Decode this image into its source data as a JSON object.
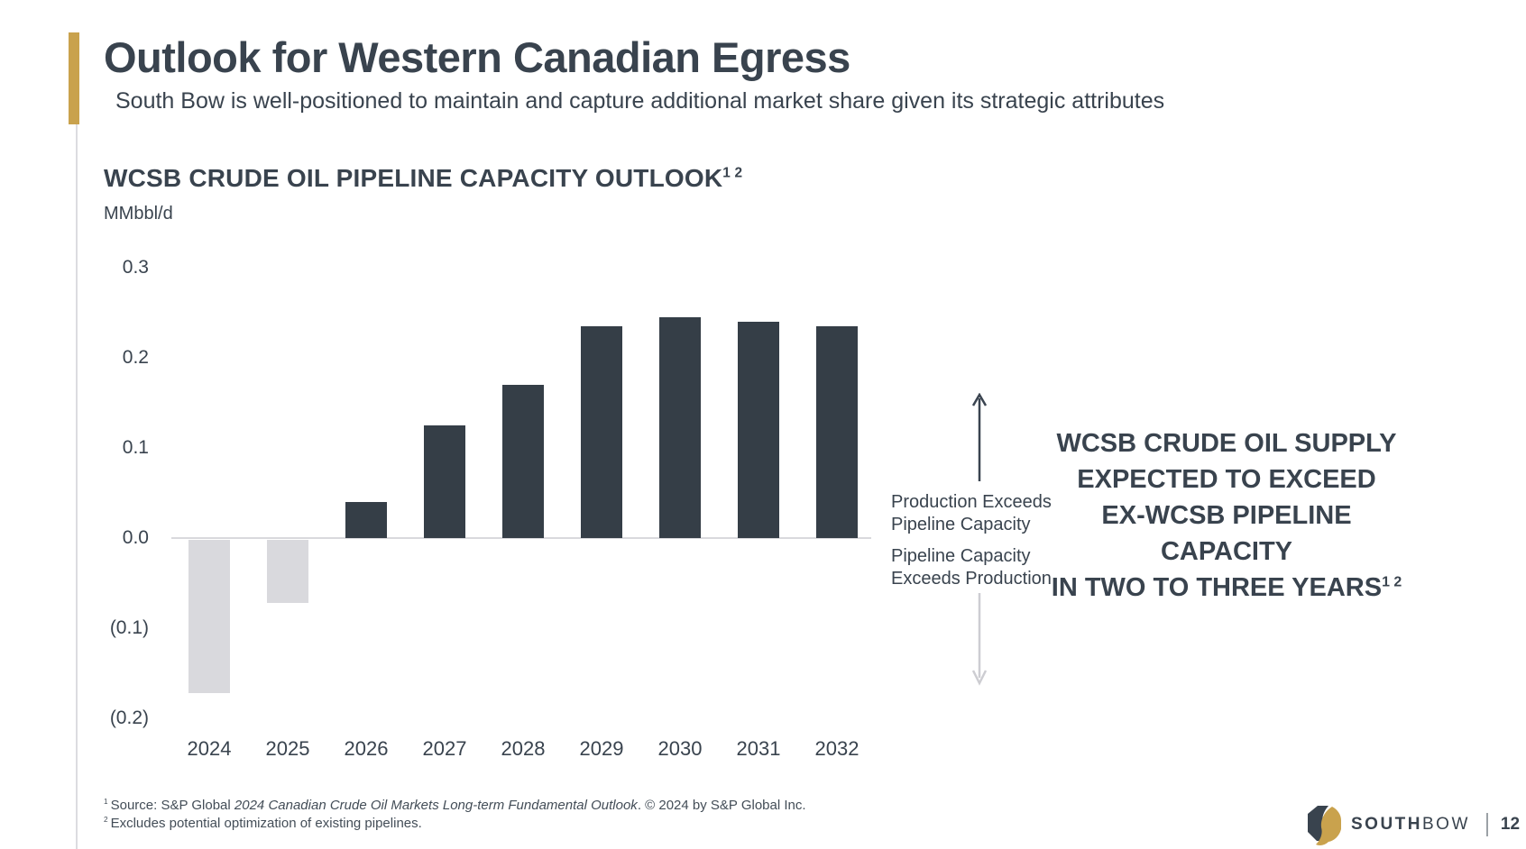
{
  "slide": {
    "title": "Outlook for Western Canadian Egress",
    "subtitle": "South Bow is well-positioned to maintain and capture additional market share given its strategic attributes"
  },
  "chart_data": {
    "type": "bar",
    "title": "WCSB CRUDE OIL PIPELINE CAPACITY OUTLOOK",
    "title_superscript": "1 2",
    "ylabel": "MMbbl/d",
    "xlabel": "",
    "categories": [
      "2024",
      "2025",
      "2026",
      "2027",
      "2028",
      "2029",
      "2030",
      "2031",
      "2032"
    ],
    "values": [
      -0.17,
      -0.07,
      0.04,
      0.125,
      0.17,
      0.235,
      0.245,
      0.24,
      0.235
    ],
    "ylim": [
      -0.2,
      0.3
    ],
    "y_ticks": [
      {
        "value": 0.3,
        "label": "0.3"
      },
      {
        "value": 0.2,
        "label": "0.2"
      },
      {
        "value": 0.1,
        "label": "0.1"
      },
      {
        "value": 0.0,
        "label": "0.0"
      },
      {
        "value": -0.1,
        "label": "(0.1)"
      },
      {
        "value": -0.2,
        "label": "(0.2)"
      }
    ],
    "bar_colors": {
      "positive": "#353E47",
      "negative": "#D9D9DD"
    },
    "legend": false,
    "gridlines": false
  },
  "annotations": {
    "up_line1": "Production Exceeds",
    "up_line2": "Pipeline Capacity",
    "down_line1": "Pipeline Capacity",
    "down_line2": "Exceeds Production"
  },
  "headline": {
    "line1": "WCSB CRUDE OIL SUPPLY",
    "line2": "EXPECTED TO EXCEED",
    "line3": "EX-WCSB PIPELINE CAPACITY",
    "line4": "IN TWO TO THREE YEARS",
    "superscript": "1 2"
  },
  "footer": {
    "note1_marker": "1",
    "note1_pre": "Source: S&P Global ",
    "note1_italic": "2024 Canadian Crude Oil Markets Long-term Fundamental Outlook",
    "note1_post": ". © 2024 by S&P Global Inc.",
    "note2_marker": "2",
    "note2_text": "Excludes potential optimization of existing pipelines."
  },
  "brand": {
    "name_bold": "SOUTH",
    "name_light": "BOW",
    "page_number": "12",
    "colors": {
      "gold": "#C9A24D",
      "slate": "#39434E"
    }
  }
}
